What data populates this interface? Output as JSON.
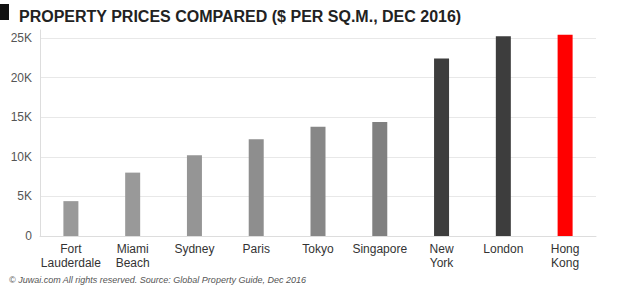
{
  "chart_data": {
    "type": "bar",
    "title": "PROPERTY PRICES COMPARED ($ PER SQ.M., DEC 2016)",
    "footer": "© Juwai.com All rights reserved. Source: Global Property Guide, Dec 2016",
    "categories": [
      "Fort Lauderdale",
      "Miami Beach",
      "Sydney",
      "Paris",
      "Tokyo",
      "Singapore",
      "New York",
      "London",
      "Hong Kong"
    ],
    "values": [
      4400,
      8000,
      10200,
      12200,
      13800,
      14400,
      22400,
      25200,
      25400
    ],
    "colors": [
      "#999999",
      "#999999",
      "#959595",
      "#8e8e8e",
      "#878787",
      "#808080",
      "#3d3d3d",
      "#3d3d3d",
      "#ff0000"
    ],
    "ylim": [
      0,
      26000
    ],
    "yticks": [
      0,
      {
        "value": 5000,
        "label": "5K"
      },
      {
        "value": 10000,
        "label": "10K"
      },
      {
        "value": 15000,
        "label": "15K"
      },
      {
        "value": 20000,
        "label": "20K"
      },
      {
        "value": 25000,
        "label": "25K"
      }
    ],
    "grid": true
  }
}
